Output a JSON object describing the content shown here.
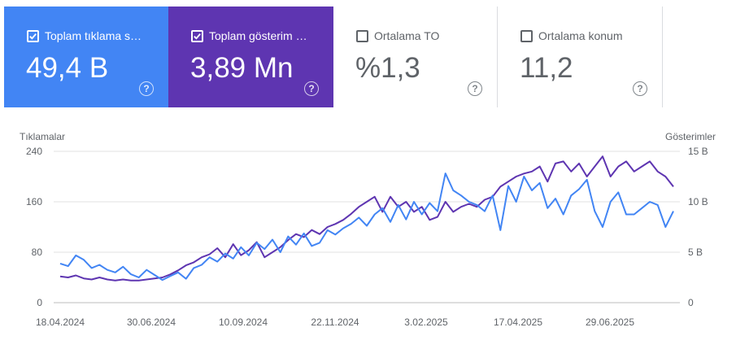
{
  "metrics": [
    {
      "label": "Toplam tıklama s…",
      "value": "49,4 B",
      "checked": true
    },
    {
      "label": "Toplam gösterim …",
      "value": "3,89 Mn",
      "checked": true
    },
    {
      "label": "Ortalama TO",
      "value": "%1,3",
      "checked": false
    },
    {
      "label": "Ortalama konum",
      "value": "11,2",
      "checked": false
    }
  ],
  "help_glyph": "?",
  "colors": {
    "clicks": "#4285f4",
    "impressions": "#5e35b1",
    "grid": "#e0e0e0",
    "axis_text": "#5f6368"
  },
  "chart_data": {
    "type": "line",
    "left_axis_label": "Tıklamalar",
    "right_axis_label": "Gösterimler",
    "left_ticks": [
      "240",
      "160",
      "80",
      "0"
    ],
    "left_tick_values": [
      240,
      160,
      80,
      0
    ],
    "right_ticks": [
      "15 B",
      "10 B",
      "5 B",
      "0"
    ],
    "right_tick_values": [
      15000,
      10000,
      5000,
      0
    ],
    "x_ticks": [
      "18.04.2024",
      "30.06.2024",
      "10.09.2024",
      "22.11.2024",
      "3.02.2025",
      "17.04.2025",
      "29.06.2025"
    ],
    "ylim_left": [
      0,
      240
    ],
    "ylim_right": [
      0,
      15000
    ],
    "grid": true,
    "series": [
      {
        "name": "Tıklamalar",
        "axis": "left",
        "values": [
          62,
          58,
          75,
          68,
          55,
          60,
          52,
          48,
          57,
          45,
          40,
          52,
          44,
          36,
          42,
          48,
          38,
          55,
          60,
          72,
          65,
          78,
          70,
          88,
          75,
          95,
          85,
          100,
          80,
          105,
          92,
          110,
          90,
          95,
          115,
          108,
          118,
          125,
          135,
          122,
          140,
          150,
          128,
          155,
          132,
          160,
          140,
          158,
          145,
          205,
          178,
          170,
          160,
          155,
          145,
          170,
          115,
          185,
          160,
          200,
          178,
          190,
          150,
          165,
          140,
          170,
          180,
          195,
          145,
          120,
          160,
          175,
          140,
          140,
          150,
          160,
          155,
          120,
          145
        ]
      },
      {
        "name": "Gösterimler",
        "axis": "right",
        "values": [
          2600,
          2500,
          2700,
          2400,
          2300,
          2500,
          2300,
          2200,
          2300,
          2200,
          2200,
          2300,
          2400,
          2500,
          2800,
          3200,
          3700,
          4000,
          4500,
          4800,
          5400,
          4500,
          5800,
          4700,
          5200,
          6000,
          4500,
          5000,
          5500,
          6200,
          6800,
          6500,
          7200,
          6800,
          7500,
          7800,
          8200,
          8800,
          9500,
          10000,
          10500,
          9000,
          10500,
          9500,
          10000,
          9000,
          9500,
          8200,
          8500,
          10000,
          9000,
          9500,
          9800,
          9500,
          10200,
          10500,
          11500,
          12000,
          12500,
          12800,
          13000,
          13500,
          12000,
          13800,
          14000,
          13000,
          13800,
          12500,
          13500,
          14500,
          12500,
          13500,
          14000,
          13000,
          13500,
          14000,
          13000,
          12500,
          11500
        ]
      }
    ]
  }
}
